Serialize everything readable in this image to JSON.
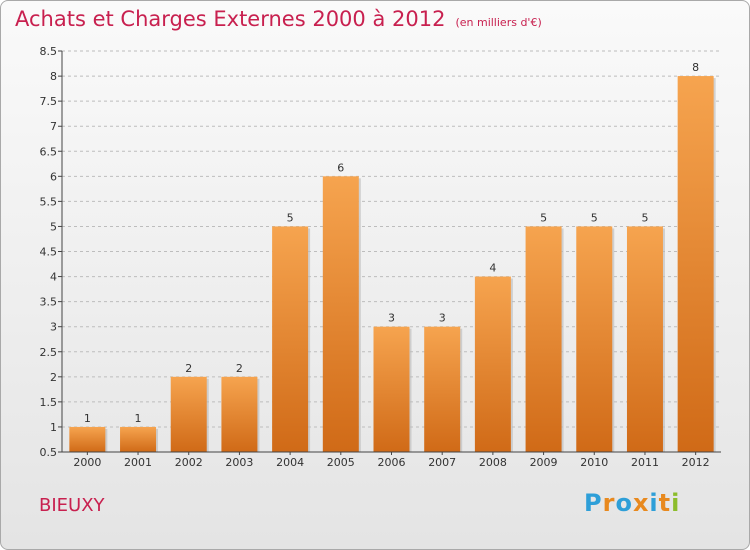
{
  "header": {
    "title": "Achats et Charges Externes 2000 à 2012",
    "unit": "(en milliers d'€)"
  },
  "footer": {
    "town": "BIEUXY",
    "brand": [
      "P",
      "r",
      "o",
      "x",
      "i",
      "t",
      "i"
    ],
    "brand_colors": [
      "#2e9fd8",
      "#e8891e",
      "#2e9fd8",
      "#e8891e",
      "#2e9fd8",
      "#e8891e",
      "#8cbd2c"
    ]
  },
  "colors": {
    "title": "#c8204f",
    "bar_top": "#f6a44f",
    "bar_bottom": "#d06a17",
    "grid": "#bdbdbd",
    "axis": "#444444"
  },
  "chart_data": {
    "type": "bar",
    "title": "Achats et Charges Externes 2000 à 2012",
    "subtitle": "(en milliers d'€)",
    "categories": [
      "2000",
      "2001",
      "2002",
      "2003",
      "2004",
      "2005",
      "2006",
      "2007",
      "2008",
      "2009",
      "2010",
      "2011",
      "2012"
    ],
    "values": [
      1,
      1,
      2,
      2,
      5,
      6,
      3,
      3,
      4,
      5,
      5,
      5,
      8
    ],
    "data_labels": [
      "1",
      "1",
      "2",
      "2",
      "5",
      "6",
      "3",
      "3",
      "4",
      "5",
      "5",
      "5",
      "8"
    ],
    "ylim": [
      0.5,
      8.5
    ],
    "yticks": [
      "0.5",
      "1",
      "1.5",
      "2",
      "2.5",
      "3",
      "3.5",
      "4",
      "4.5",
      "5",
      "5.5",
      "6",
      "6.5",
      "7",
      "7.5",
      "8",
      "8.5"
    ],
    "grid": "horizontal dashed",
    "legend": "none"
  }
}
